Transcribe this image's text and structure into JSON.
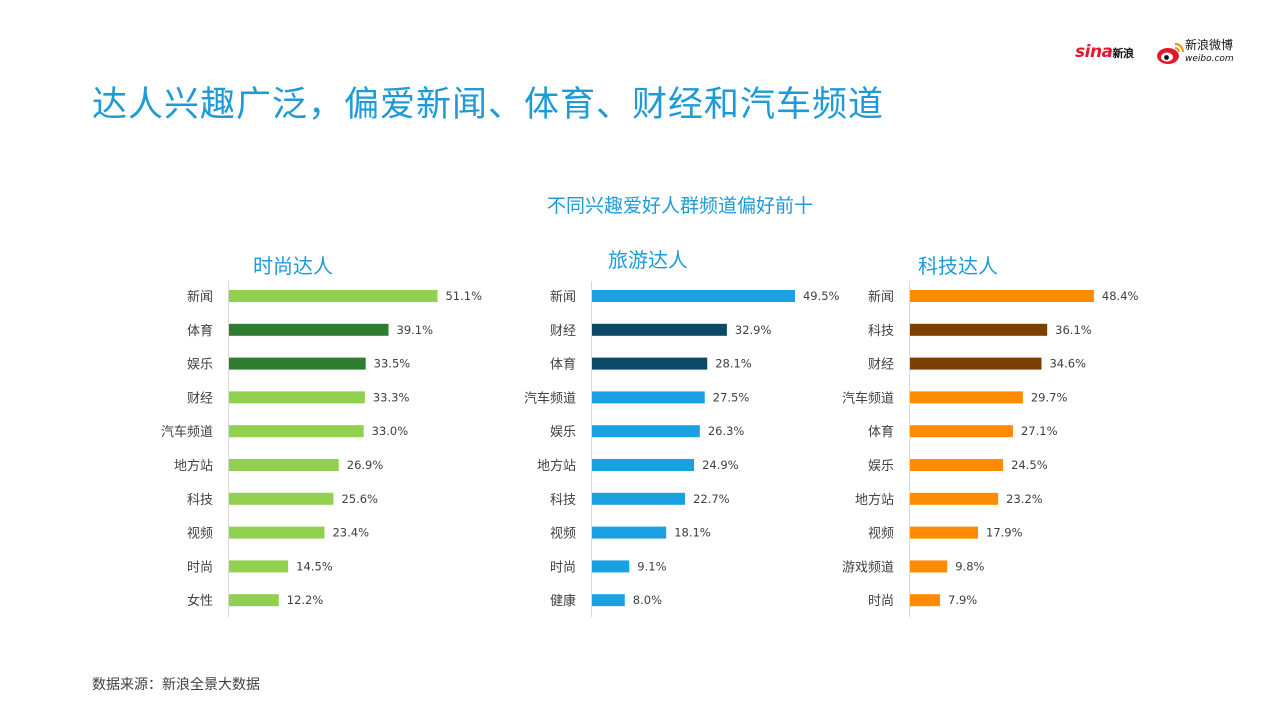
{
  "header": {
    "title": "达人兴趣广泛，偏爱新闻、体育、财经和汽车频道",
    "logo_sina": "sina",
    "logo_sina_cn": "新浪",
    "logo_weibo": "新浪微博",
    "logo_weibo_url": "weibo.com"
  },
  "source": "数据来源：新浪全景大数据",
  "chart_data": [
    {
      "type": "bar",
      "title": "时尚达人",
      "categories": [
        "新闻",
        "体育",
        "娱乐",
        "财经",
        "汽车频道",
        "地方站",
        "科技",
        "视频",
        "时尚",
        "女性"
      ],
      "values": [
        51.1,
        39.1,
        33.5,
        33.3,
        33.0,
        26.9,
        25.6,
        23.4,
        14.5,
        12.2
      ],
      "value_labels": [
        "51.1%",
        "39.1%",
        "33.5%",
        "33.3%",
        "33.0%",
        "26.9%",
        "25.6%",
        "23.4%",
        "14.5%",
        "12.2%"
      ],
      "colors": [
        "#92d050",
        "#2e7d32",
        "#2e7d32",
        "#92d050",
        "#92d050",
        "#92d050",
        "#92d050",
        "#92d050",
        "#92d050",
        "#92d050"
      ],
      "xlim": [
        0,
        55
      ]
    },
    {
      "type": "bar",
      "title": "旅游达人",
      "categories": [
        "新闻",
        "财经",
        "体育",
        "汽车频道",
        "娱乐",
        "地方站",
        "科技",
        "视频",
        "时尚",
        "健康"
      ],
      "values": [
        49.5,
        32.9,
        28.1,
        27.5,
        26.3,
        24.9,
        22.7,
        18.1,
        9.1,
        8.0
      ],
      "value_labels": [
        "49.5%",
        "32.9%",
        "28.1%",
        "27.5%",
        "26.3%",
        "24.9%",
        "22.7%",
        "18.1%",
        "9.1%",
        "8.0%"
      ],
      "colors": [
        "#1ba1e2",
        "#0b4a66",
        "#0b4a66",
        "#1ba1e2",
        "#1ba1e2",
        "#1ba1e2",
        "#1ba1e2",
        "#1ba1e2",
        "#1ba1e2",
        "#1ba1e2"
      ],
      "xlim": [
        0,
        55
      ]
    },
    {
      "type": "bar",
      "title": "科技达人",
      "categories": [
        "新闻",
        "科技",
        "财经",
        "汽车频道",
        "体育",
        "娱乐",
        "地方站",
        "视频",
        "游戏频道",
        "时尚"
      ],
      "values": [
        48.4,
        36.1,
        34.6,
        29.7,
        27.1,
        24.5,
        23.2,
        17.9,
        9.8,
        7.9
      ],
      "value_labels": [
        "48.4%",
        "36.1%",
        "34.6%",
        "29.7%",
        "27.1%",
        "24.5%",
        "23.2%",
        "17.9%",
        "9.8%",
        "7.9%"
      ],
      "colors": [
        "#ff8c00",
        "#7b3f00",
        "#7b3f00",
        "#ff8c00",
        "#ff8c00",
        "#ff8c00",
        "#ff8c00",
        "#ff8c00",
        "#ff8c00",
        "#ff8c00"
      ],
      "xlim": [
        0,
        55
      ]
    }
  ],
  "chart_group_title": "不同兴趣爱好人群频道偏好前十"
}
